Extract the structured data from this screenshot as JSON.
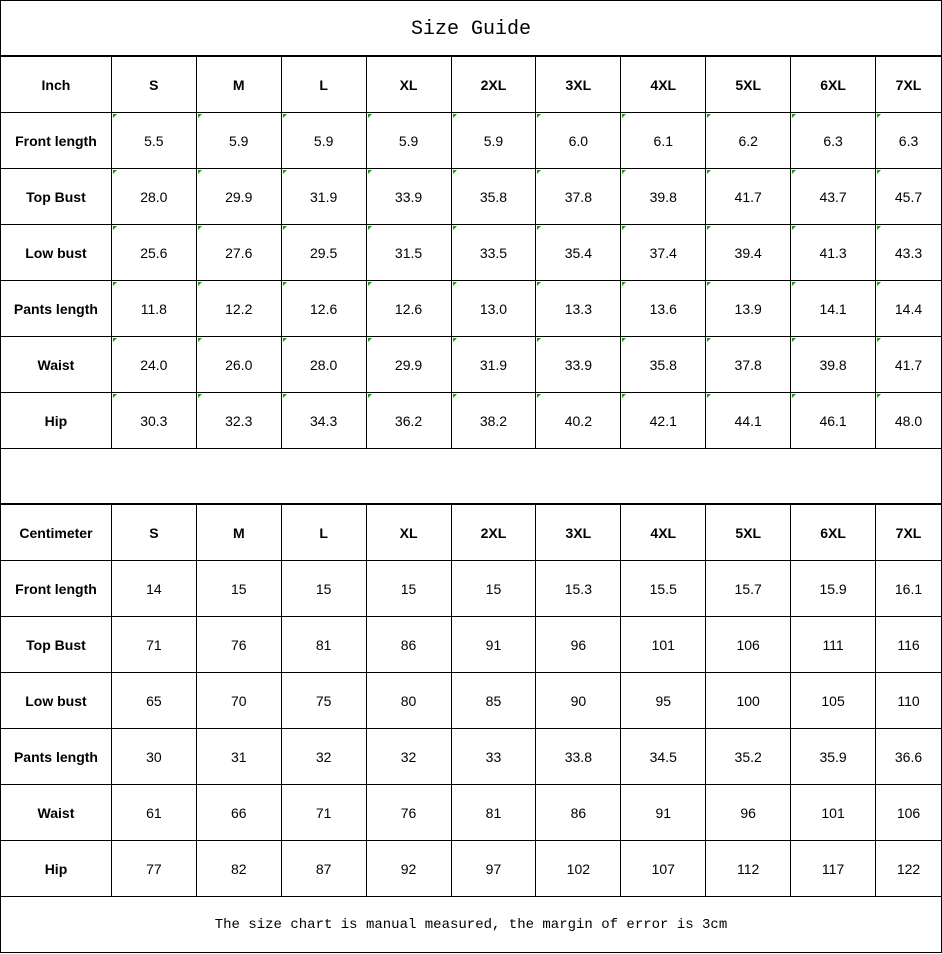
{
  "title": "Size Guide",
  "sizes": [
    "S",
    "M",
    "L",
    "XL",
    "2XL",
    "3XL",
    "4XL",
    "5XL",
    "6XL",
    "7XL"
  ],
  "inch_table": {
    "unit_label": "Inch",
    "rows": [
      {
        "label": "Front length",
        "values": [
          "5.5",
          "5.9",
          "5.9",
          "5.9",
          "5.9",
          "6.0",
          "6.1",
          "6.2",
          "6.3",
          "6.3"
        ]
      },
      {
        "label": "Top Bust",
        "values": [
          "28.0",
          "29.9",
          "31.9",
          "33.9",
          "35.8",
          "37.8",
          "39.8",
          "41.7",
          "43.7",
          "45.7"
        ]
      },
      {
        "label": "Low bust",
        "values": [
          "25.6",
          "27.6",
          "29.5",
          "31.5",
          "33.5",
          "35.4",
          "37.4",
          "39.4",
          "41.3",
          "43.3"
        ]
      },
      {
        "label": "Pants length",
        "values": [
          "11.8",
          "12.2",
          "12.6",
          "12.6",
          "13.0",
          "13.3",
          "13.6",
          "13.9",
          "14.1",
          "14.4"
        ]
      },
      {
        "label": "Waist",
        "values": [
          "24.0",
          "26.0",
          "28.0",
          "29.9",
          "31.9",
          "33.9",
          "35.8",
          "37.8",
          "39.8",
          "41.7"
        ]
      },
      {
        "label": "Hip",
        "values": [
          "30.3",
          "32.3",
          "34.3",
          "36.2",
          "38.2",
          "40.2",
          "42.1",
          "44.1",
          "46.1",
          "48.0"
        ]
      }
    ]
  },
  "cm_table": {
    "unit_label": "Centimeter",
    "rows": [
      {
        "label": "Front length",
        "values": [
          "14",
          "15",
          "15",
          "15",
          "15",
          "15.3",
          "15.5",
          "15.7",
          "15.9",
          "16.1"
        ]
      },
      {
        "label": "Top Bust",
        "values": [
          "71",
          "76",
          "81",
          "86",
          "91",
          "96",
          "101",
          "106",
          "111",
          "116"
        ]
      },
      {
        "label": "Low bust",
        "values": [
          "65",
          "70",
          "75",
          "80",
          "85",
          "90",
          "95",
          "100",
          "105",
          "110"
        ]
      },
      {
        "label": "Pants length",
        "values": [
          "30",
          "31",
          "32",
          "32",
          "33",
          "33.8",
          "34.5",
          "35.2",
          "35.9",
          "36.6"
        ]
      },
      {
        "label": "Waist",
        "values": [
          "61",
          "66",
          "71",
          "76",
          "81",
          "86",
          "91",
          "96",
          "101",
          "106"
        ]
      },
      {
        "label": "Hip",
        "values": [
          "77",
          "82",
          "87",
          "92",
          "97",
          "102",
          "107",
          "112",
          "117",
          "122"
        ]
      }
    ]
  },
  "footer_note": "The size chart is manual measured, the margin of error is 3cm",
  "colors": {
    "cell_marker": "#1a9b1a",
    "border": "#000000"
  }
}
